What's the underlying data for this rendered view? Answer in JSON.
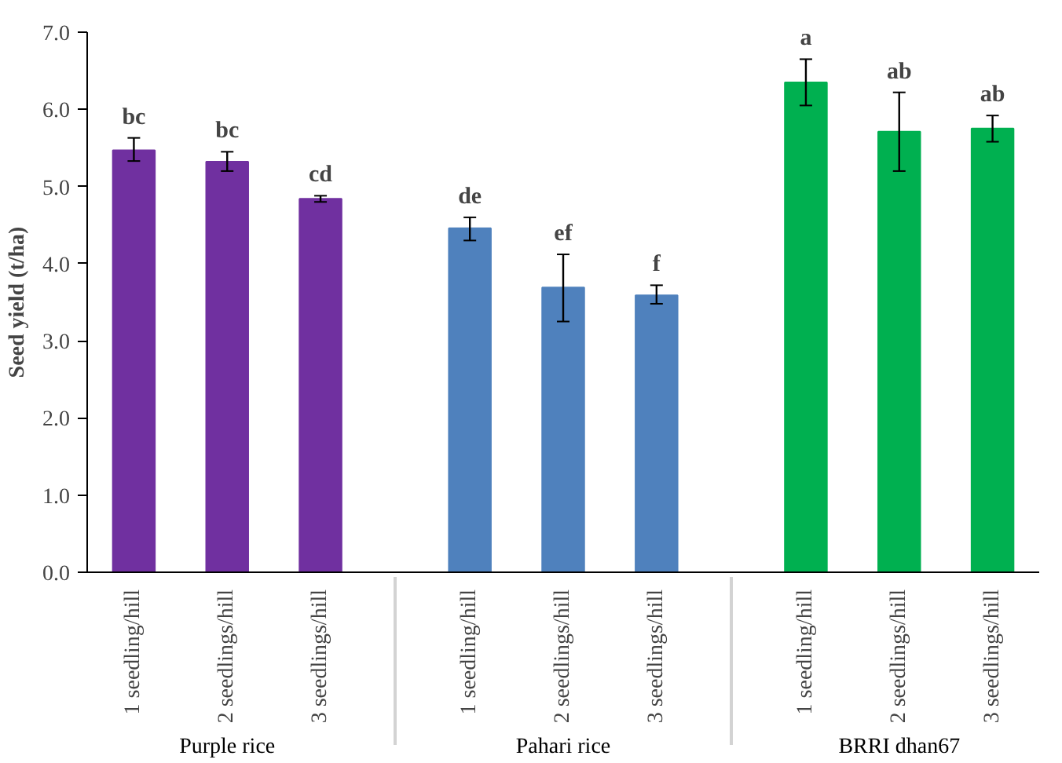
{
  "chart_data": {
    "type": "bar",
    "ylabel": "Seed yield (t/ha)",
    "categories": [
      "1 seedling/hill",
      "2 seedlings/hill",
      "3 seedlings/hill",
      "1 seedling/hill",
      "2 seedlings/hill",
      "3 seedlings/hill",
      "1 seedling/hill",
      "2 seedlings/hill",
      "3 seedlings/hill"
    ],
    "values": [
      5.47,
      5.32,
      4.84,
      4.46,
      3.69,
      3.59,
      6.35,
      5.71,
      5.75
    ],
    "colors": [
      "#7030a0",
      "#7030a0",
      "#7030a0",
      "#4f81bd",
      "#4f81bd",
      "#4f81bd",
      "#00b050",
      "#00b050",
      "#00b050"
    ],
    "errors": [
      [
        5.33,
        5.63
      ],
      [
        5.2,
        5.45
      ],
      [
        4.8,
        4.88
      ],
      [
        4.3,
        4.6
      ],
      [
        3.25,
        4.12
      ],
      [
        3.48,
        3.72
      ],
      [
        6.05,
        6.65
      ],
      [
        5.2,
        6.22
      ],
      [
        5.58,
        5.92
      ]
    ],
    "value_labels": [
      "bc",
      "bc",
      "cd",
      "de",
      "ef",
      "f",
      "a",
      "ab",
      "ab"
    ],
    "annotations": [
      "Purple rice",
      "Pahari rice",
      "BRRI dhan67"
    ],
    "ylim": [
      0,
      7
    ],
    "yticks": [
      {
        "value": 0,
        "label": "0.0"
      },
      {
        "value": 1,
        "label": "1.0"
      },
      {
        "value": 2,
        "label": "2.0"
      },
      {
        "value": 3,
        "label": "3.0"
      },
      {
        "value": 4,
        "label": "4.0"
      },
      {
        "value": 5,
        "label": "5.0"
      },
      {
        "value": 6,
        "label": "6.0"
      },
      {
        "value": 7,
        "label": "7.0"
      }
    ],
    "grid": false
  }
}
